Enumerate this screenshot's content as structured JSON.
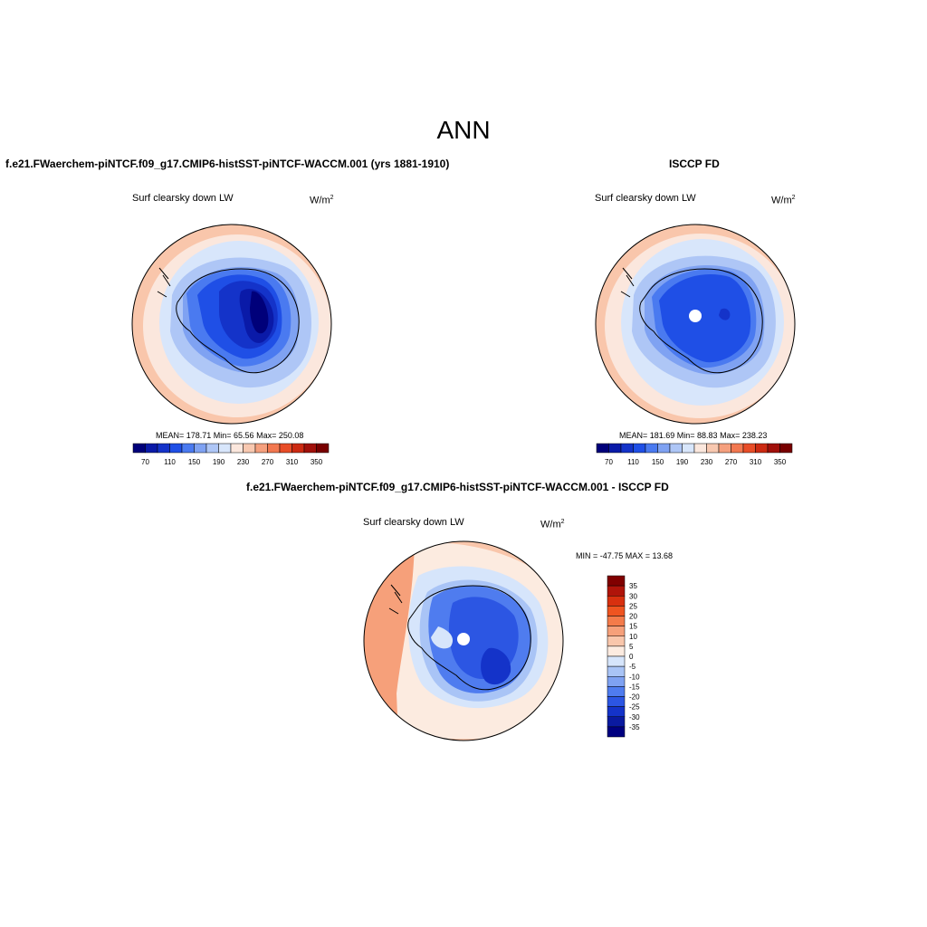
{
  "title": "ANN",
  "panels": [
    {
      "id": "model",
      "heading": "f.e21.FWaerchem-piNTCF.f09_g17.CMIP6-histSST-piNTCF-WACCM.001 (yrs 1881-1910)",
      "variable": "Surf clearsky down LW",
      "units": "W/m",
      "units_exp": "2",
      "stats": "MEAN= 178.71  Min=  65.56  Max= 250.08",
      "stats_values": {
        "mean": 178.71,
        "min": 65.56,
        "max": 250.08
      }
    },
    {
      "id": "obs",
      "heading": "ISCCP FD",
      "variable": "Surf clearsky down LW",
      "units": "W/m",
      "units_exp": "2",
      "stats": "MEAN= 181.69  Min=  88.83  Max= 238.23",
      "stats_values": {
        "mean": 181.69,
        "min": 88.83,
        "max": 238.23
      }
    },
    {
      "id": "diff",
      "heading": "f.e21.FWaerchem-piNTCF.f09_g17.CMIP6-histSST-piNTCF-WACCM.001 - ISCCP FD",
      "variable": "Surf clearsky down LW",
      "units": "W/m",
      "units_exp": "2",
      "stats": "MIN = -47.75 MAX =  13.68",
      "stats_values": {
        "min": -47.75,
        "max": 13.68
      }
    }
  ],
  "colorbar_abs": {
    "labels": [
      "70",
      "110",
      "150",
      "190",
      "230",
      "270",
      "310",
      "350"
    ],
    "colors": [
      "#00007a",
      "#0a1aa8",
      "#1433c9",
      "#1f4fe6",
      "#4a7af0",
      "#7fa2f2",
      "#aec6f6",
      "#d8e6fb",
      "#fbe7dd",
      "#f8c8b0",
      "#f5a07e",
      "#f27850",
      "#e84d28",
      "#cc2a12",
      "#a1100a",
      "#780000"
    ]
  },
  "colorbar_diff": {
    "labels": [
      "35",
      "30",
      "25",
      "20",
      "15",
      "10",
      "5",
      "0",
      "-5",
      "-10",
      "-15",
      "-20",
      "-25",
      "-30",
      "-35"
    ],
    "colors": [
      "#800000",
      "#b0140a",
      "#d8300f",
      "#ef5420",
      "#f47b4a",
      "#f6a07a",
      "#f9c6ab",
      "#fcebe0",
      "#d6e5fb",
      "#a9c4f6",
      "#7fa2f2",
      "#4f7cef",
      "#2c56e3",
      "#1433c9",
      "#0a1aa0",
      "#000080"
    ]
  }
}
